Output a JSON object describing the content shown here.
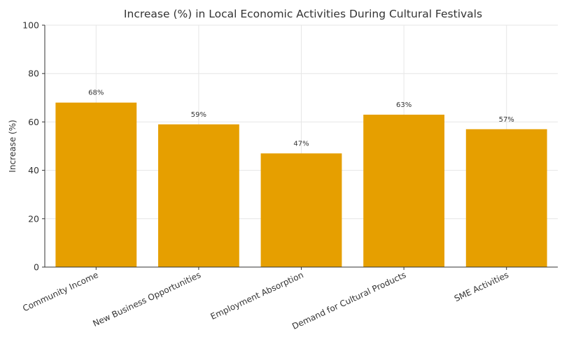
{
  "chart_data": {
    "type": "bar",
    "title": "Increase (%) in Local Economic Activities During Cultural Festivals",
    "xlabel": "",
    "ylabel": "Increase (%)",
    "categories": [
      "Community Income",
      "New Business Opportunities",
      "Employment Absorption",
      "Demand for Cultural Products",
      "SME Activities"
    ],
    "values": [
      68,
      59,
      47,
      63,
      57
    ],
    "data_labels": [
      "68%",
      "59%",
      "47%",
      "63%",
      "57%"
    ],
    "ylim": [
      0,
      100
    ],
    "yticks": [
      0,
      20,
      40,
      60,
      80,
      100
    ],
    "grid": true,
    "bar_color": "#e69f00",
    "legend": "none"
  }
}
